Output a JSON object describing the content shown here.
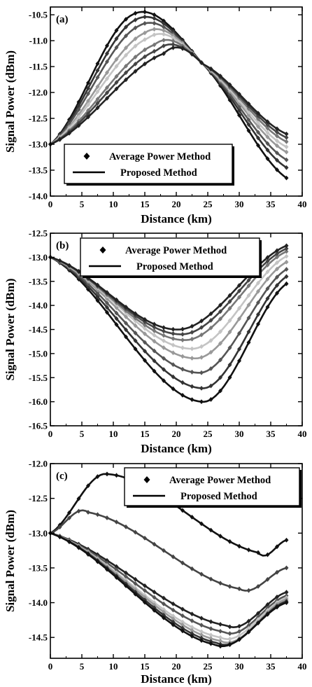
{
  "chart_data": [
    {
      "type": "line",
      "panel_label": "(a)",
      "xlabel": "Distance (km)",
      "ylabel": "Signal Power (dBm)",
      "xlim": [
        0,
        40
      ],
      "ylim": [
        -14.0,
        -10.35
      ],
      "xticks": [
        0,
        5,
        10,
        15,
        20,
        25,
        30,
        35,
        40
      ],
      "yticks": [
        -14.0,
        -13.5,
        -13.0,
        -12.5,
        -12.0,
        -11.5,
        -11.0,
        -10.5
      ],
      "xtick_labels": [
        "0",
        "5",
        "10",
        "15",
        "20",
        "25",
        "30",
        "35",
        "40"
      ],
      "ytick_labels": [
        "-14.0",
        "-13.5",
        "-13.0",
        "-12.5",
        "-12.0",
        "-11.5",
        "-11.0",
        "-10.5"
      ],
      "legend": {
        "placement": "lower-left",
        "entries": [
          "Average Power Method",
          "Proposed Method"
        ]
      },
      "series_colors": [
        "#111111",
        "#333333",
        "#555555",
        "#999999",
        "#c4c4c4",
        "#777777",
        "#444444",
        "#222222"
      ],
      "series": [
        {
          "x": [
            0,
            13,
            24.2,
            37.5
          ],
          "y": [
            -13.0,
            -10.5,
            -11.45,
            -13.65
          ]
        },
        {
          "x": [
            0,
            13.5,
            24.2,
            37.5
          ],
          "y": [
            -13.0,
            -10.6,
            -11.45,
            -13.45
          ]
        },
        {
          "x": [
            0,
            14,
            24.2,
            37.5
          ],
          "y": [
            -13.0,
            -10.72,
            -11.45,
            -13.3
          ]
        },
        {
          "x": [
            0,
            15,
            24.2,
            37.5
          ],
          "y": [
            -13.0,
            -10.85,
            -11.45,
            -13.15
          ]
        },
        {
          "x": [
            0,
            15.5,
            24.2,
            37.5
          ],
          "y": [
            -13.0,
            -10.95,
            -11.45,
            -13.05
          ]
        },
        {
          "x": [
            0,
            16.5,
            24.2,
            37.5
          ],
          "y": [
            -13.0,
            -11.08,
            -11.45,
            -12.95
          ]
        },
        {
          "x": [
            0,
            17,
            24.2,
            37.5
          ],
          "y": [
            -13.0,
            -11.18,
            -11.45,
            -12.87
          ]
        },
        {
          "x": [
            0,
            18,
            24.2,
            37.5
          ],
          "y": [
            -13.0,
            -11.25,
            -11.45,
            -12.8
          ]
        }
      ]
    },
    {
      "type": "line",
      "panel_label": "(b)",
      "xlabel": "Distance (km)",
      "ylabel": "Signal Power (dBm)",
      "xlim": [
        0,
        40
      ],
      "ylim": [
        -16.5,
        -12.5
      ],
      "xticks": [
        0,
        5,
        10,
        15,
        20,
        25,
        30,
        35,
        40
      ],
      "yticks": [
        -16.5,
        -16.0,
        -15.5,
        -15.0,
        -14.5,
        -14.0,
        -13.5,
        -13.0,
        -12.5
      ],
      "xtick_labels": [
        "0",
        "5",
        "10",
        "15",
        "20",
        "25",
        "30",
        "35",
        "40"
      ],
      "ytick_labels": [
        "-16.5",
        "-16.0",
        "-15.5",
        "-15.0",
        "-14.5",
        "-14.0",
        "-13.5",
        "-13.0",
        "-12.5"
      ],
      "legend": {
        "placement": "top-center",
        "entries": [
          "Average Power Method",
          "Proposed Method"
        ]
      },
      "series_colors": [
        "#111111",
        "#333333",
        "#555555",
        "#999999",
        "#c4c4c4",
        "#777777",
        "#444444",
        "#222222"
      ],
      "series": [
        {
          "x": [
            0,
            24,
            37.5
          ],
          "y": [
            -13.0,
            -16.0,
            -13.55
          ]
        },
        {
          "x": [
            0,
            24,
            37.5
          ],
          "y": [
            -13.0,
            -15.72,
            -13.4
          ]
        },
        {
          "x": [
            0,
            23.5,
            37.5
          ],
          "y": [
            -13.0,
            -15.4,
            -13.25
          ]
        },
        {
          "x": [
            0,
            23,
            37.5
          ],
          "y": [
            -13.0,
            -15.1,
            -13.1
          ]
        },
        {
          "x": [
            0,
            22.5,
            37.5
          ],
          "y": [
            -13.0,
            -14.9,
            -12.98
          ]
        },
        {
          "x": [
            0,
            21.5,
            37.5
          ],
          "y": [
            -13.0,
            -14.72,
            -12.88
          ]
        },
        {
          "x": [
            0,
            21,
            37.5
          ],
          "y": [
            -13.0,
            -14.6,
            -12.82
          ]
        },
        {
          "x": [
            0,
            20.5,
            37.5
          ],
          "y": [
            -13.0,
            -14.5,
            -12.76
          ]
        }
      ]
    },
    {
      "type": "line",
      "panel_label": "(c)",
      "xlabel": "Distance (km)",
      "ylabel": "Signal Power (dBm)",
      "xlim": [
        0,
        40
      ],
      "ylim": [
        -14.8,
        -12.0
      ],
      "xticks": [
        0,
        5,
        10,
        15,
        20,
        25,
        30,
        35,
        40
      ],
      "yticks": [
        -14.5,
        -14.0,
        -13.5,
        -13.0,
        -12.5,
        -12.0
      ],
      "xtick_labels": [
        "0",
        "5",
        "10",
        "15",
        "20",
        "25",
        "30",
        "35",
        "40"
      ],
      "ytick_labels": [
        "-14.5",
        "-14.0",
        "-13.5",
        "-13.0",
        "-12.5",
        "-12.0"
      ],
      "legend": {
        "placement": "top-right",
        "entries": [
          "Average Power Method",
          "Proposed Method"
        ]
      },
      "series_colors": [
        "#111111",
        "#444444",
        "#222222",
        "#555555",
        "#c4c4c4",
        "#999999",
        "#333333",
        "#111111"
      ],
      "series": [
        {
          "x": [
            0,
            9,
            33,
            37.5
          ],
          "y": [
            -13.0,
            -12.15,
            -13.28,
            -13.1
          ]
        },
        {
          "x": [
            0,
            6,
            30,
            37.5
          ],
          "y": [
            -13.0,
            -12.7,
            -13.8,
            -13.5
          ]
        },
        {
          "x": [
            0,
            28,
            37.5
          ],
          "y": [
            -13.0,
            -14.33,
            -13.85
          ]
        },
        {
          "x": [
            0,
            27.5,
            37.5
          ],
          "y": [
            -13.0,
            -14.42,
            -13.9
          ]
        },
        {
          "x": [
            0,
            27,
            37.5
          ],
          "y": [
            -13.0,
            -14.5,
            -13.93
          ]
        },
        {
          "x": [
            0,
            27,
            37.5
          ],
          "y": [
            -13.0,
            -14.55,
            -13.95
          ]
        },
        {
          "x": [
            0,
            26.5,
            37.5
          ],
          "y": [
            -13.0,
            -14.58,
            -13.98
          ]
        },
        {
          "x": [
            0,
            26,
            37.5
          ],
          "y": [
            -13.0,
            -14.6,
            -14.0
          ]
        }
      ]
    }
  ]
}
